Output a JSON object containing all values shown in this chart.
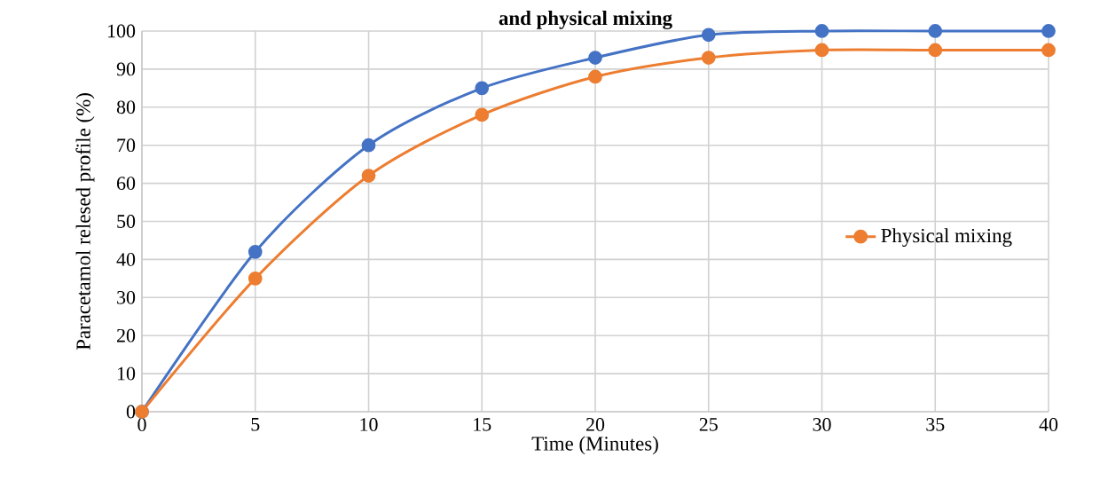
{
  "chart_data": {
    "type": "line",
    "title": "and physical mixing",
    "xlabel": "Time (Minutes)",
    "ylabel": "Paracetamol relesed profile (%)",
    "x": [
      0,
      5,
      10,
      15,
      20,
      25,
      30,
      35,
      40
    ],
    "series": [
      {
        "color": "#4472c4",
        "values": [
          0,
          42,
          70,
          85,
          93,
          99,
          100,
          100,
          100
        ]
      },
      {
        "name": "Physical mixing",
        "color": "#ed7d31",
        "values": [
          0,
          35,
          62,
          78,
          88,
          93,
          95,
          95,
          95
        ]
      }
    ],
    "xlim": [
      0,
      40
    ],
    "xticks": [
      0,
      5,
      10,
      15,
      20,
      25,
      30,
      35,
      40
    ],
    "ylim": [
      0,
      100
    ],
    "yticks": [
      0,
      10,
      20,
      30,
      40,
      50,
      60,
      70,
      80,
      90,
      100
    ],
    "grid": true,
    "legend": "right",
    "marker": "circle",
    "line_style": "solid"
  }
}
